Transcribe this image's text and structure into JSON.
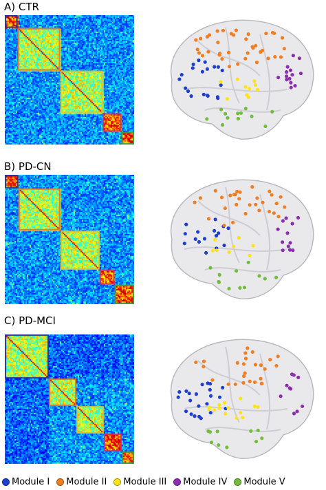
{
  "panels": [
    {
      "label": "A) CTR",
      "module_order": [
        0,
        1,
        2,
        3,
        4
      ],
      "brain_counts": [
        20,
        38,
        10,
        14,
        12
      ],
      "sizes": [
        9,
        30,
        30,
        13,
        9
      ]
    },
    {
      "label": "B) PD-CN",
      "module_order": [
        0,
        1,
        2,
        3,
        4
      ],
      "brain_counts": [
        16,
        30,
        8,
        12,
        12
      ],
      "sizes": [
        9,
        28,
        26,
        10,
        13
      ]
    },
    {
      "label": "C) PD-MCI",
      "module_order": [
        0,
        1,
        2,
        3,
        4
      ],
      "brain_counts": [
        22,
        26,
        14,
        10,
        10
      ],
      "sizes": [
        32,
        20,
        20,
        13,
        9
      ]
    }
  ],
  "legend": {
    "items": [
      {
        "label": "Module I",
        "color": "#1f3fcf"
      },
      {
        "label": "Module II",
        "color": "#f07e22"
      },
      {
        "label": "Module III",
        "color": "#ffe31a"
      },
      {
        "label": "Module IV",
        "color": "#8b2fb0"
      },
      {
        "label": "Module V",
        "color": "#73bd3e"
      }
    ]
  },
  "colors": {
    "module_border": [
      "#27339b",
      "#e5762f",
      "#d6c43a",
      "#c8336b",
      "#3f9e46"
    ],
    "brain_fill": "#e9e9ec",
    "brain_stroke": "#b9b9bf"
  }
}
